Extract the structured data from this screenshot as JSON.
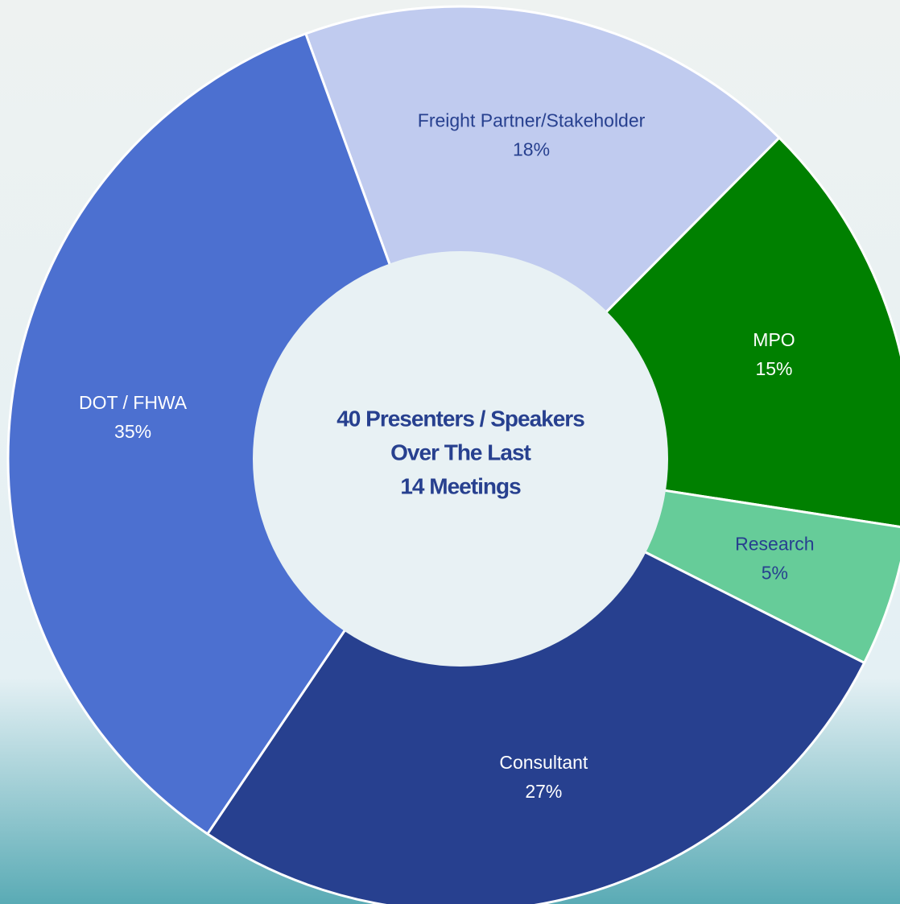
{
  "chart_data": {
    "type": "donut",
    "categories": [
      "Freight Partner/Stakeholder",
      "MPO",
      "Research",
      "Consultant",
      "DOT / FHWA"
    ],
    "values": [
      18,
      15,
      5,
      27,
      35
    ],
    "value_labels": [
      "18%",
      "15%",
      "5%",
      "27%",
      "35%"
    ],
    "colors": [
      "#c0cbef",
      "#008000",
      "#66cc99",
      "#27408f",
      "#4c70d0"
    ],
    "center_text": [
      "40 Presenters / Speakers",
      "Over The Last",
      "14 Meetings"
    ]
  }
}
